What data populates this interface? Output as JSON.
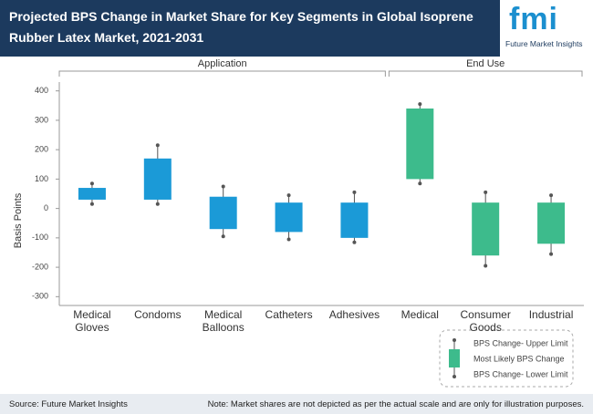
{
  "header": {
    "title": "Projected BPS Change in Market Share for Key Segments in Global Isoprene Rubber Latex Market, 2021-2031",
    "logo": "fmi",
    "logo_text": "Future Market Insights"
  },
  "chart_data": {
    "type": "range",
    "y_label": "Basis Points",
    "ylim": [
      -330,
      430
    ],
    "yticks": [
      -300,
      -200,
      -100,
      0,
      100,
      200,
      300,
      400
    ],
    "groups": [
      {
        "name": "Application",
        "color": "#1b9ad7",
        "items": [
          {
            "category": "Medical Gloves",
            "lower": 15,
            "low": 30,
            "high": 70,
            "upper": 85
          },
          {
            "category": "Condoms",
            "lower": 15,
            "low": 30,
            "high": 170,
            "upper": 215
          },
          {
            "category": "Medical Balloons",
            "lower": -95,
            "low": -70,
            "high": 40,
            "upper": 75
          },
          {
            "category": "Catheters",
            "lower": -105,
            "low": -80,
            "high": 20,
            "upper": 45
          },
          {
            "category": "Adhesives",
            "lower": -115,
            "low": -100,
            "high": 20,
            "upper": 55
          }
        ]
      },
      {
        "name": "End Use",
        "color": "#3dbb8c",
        "items": [
          {
            "category": "Medical",
            "lower": 85,
            "low": 100,
            "high": 340,
            "upper": 355
          },
          {
            "category": "Consumer Goods",
            "lower": -195,
            "low": -160,
            "high": 20,
            "upper": 55
          },
          {
            "category": "Industrial",
            "lower": -155,
            "low": -120,
            "high": 20,
            "upper": 45
          }
        ]
      }
    ],
    "legend": {
      "upper": "BPS Change- Upper Limit",
      "likely": "Most Likely BPS Change",
      "lower": "BPS Change- Lower Limit"
    }
  },
  "footer": {
    "source": "Source: Future Market Insights",
    "note": "Note: Market shares are not depicted as per the actual scale and are only for illustration purposes."
  }
}
